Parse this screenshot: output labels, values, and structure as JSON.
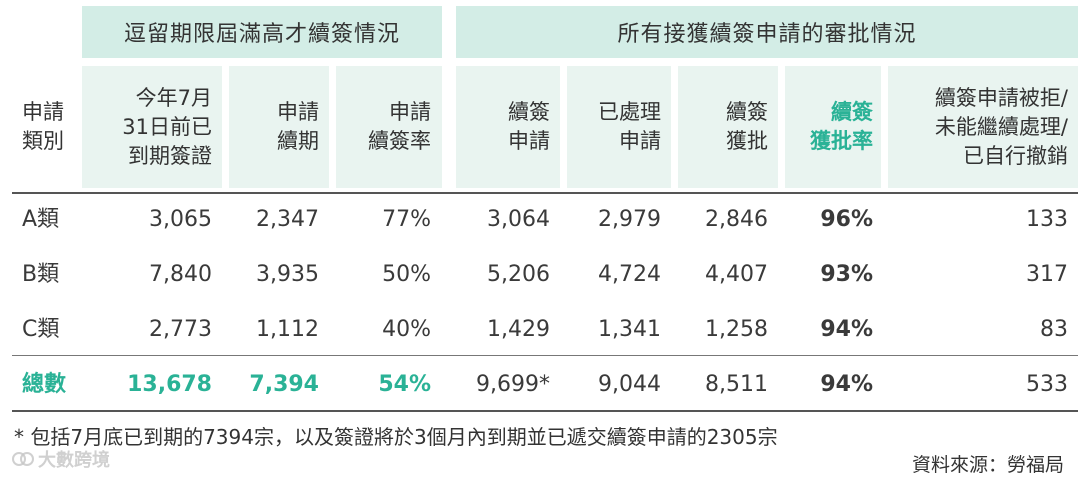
{
  "group_headers": {
    "left": "逗留期限屆滿高才續簽情況",
    "right": "所有接獲續簽申請的審批情況"
  },
  "columns": {
    "category": [
      "申請",
      "類別"
    ],
    "expiring": [
      "今年7月",
      "31日前已",
      "到期簽證"
    ],
    "renewal_applied": [
      "申請",
      "續期"
    ],
    "renewal_rate": [
      "申請",
      "續簽率"
    ],
    "renewal_apps": [
      "續簽",
      "申請"
    ],
    "processed": [
      "已處理",
      "申請"
    ],
    "approved": [
      "續簽",
      "獲批"
    ],
    "approval_rate": [
      "續簽",
      "獲批率"
    ],
    "rejected": [
      "續簽申請被拒/",
      "未能繼續處理/",
      "已自行撤銷"
    ]
  },
  "rows": [
    {
      "category": "A類",
      "expiring": "3,065",
      "renewal_applied": "2,347",
      "renewal_rate": "77%",
      "renewal_apps": "3,064",
      "processed": "2,979",
      "approved": "2,846",
      "approval_rate": "96%",
      "rejected": "133"
    },
    {
      "category": "B類",
      "expiring": "7,840",
      "renewal_applied": "3,935",
      "renewal_rate": "50%",
      "renewal_apps": "5,206",
      "processed": "4,724",
      "approved": "4,407",
      "approval_rate": "93%",
      "rejected": "317"
    },
    {
      "category": "C類",
      "expiring": "2,773",
      "renewal_applied": "1,112",
      "renewal_rate": "40%",
      "renewal_apps": "1,429",
      "processed": "1,341",
      "approved": "1,258",
      "approval_rate": "94%",
      "rejected": "83"
    }
  ],
  "total": {
    "category": "總數",
    "expiring": "13,678",
    "renewal_applied": "7,394",
    "renewal_rate": "54%",
    "renewal_apps": "9,699*",
    "processed": "9,044",
    "approved": "8,511",
    "approval_rate": "94%",
    "rejected": "533"
  },
  "footnote": "* 包括7月底已到期的7394宗，以及簽證將於3個月內到期並已遞交續簽申請的2305宗",
  "source": "資料來源：勞福局",
  "watermark": "大數跨境",
  "colors": {
    "accent": "#2ab296",
    "header_bg": "#d3ede6",
    "column_bg": "#e9f4f0"
  }
}
